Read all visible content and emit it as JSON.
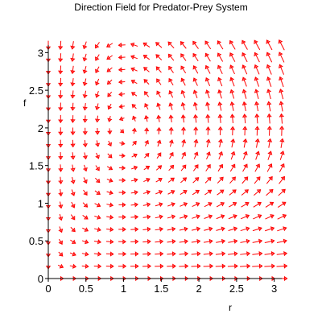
{
  "chart_data": {
    "type": "direction-field",
    "title": "Direction Field for Predator-Prey System",
    "xlabel": "r",
    "ylabel": "f",
    "xlim": [
      0,
      3.1
    ],
    "ylim": [
      0,
      3.1
    ],
    "x_ticks": [
      {
        "value": 0,
        "label": "0"
      },
      {
        "value": 0.5,
        "label": "0.5"
      },
      {
        "value": 1,
        "label": "1"
      },
      {
        "value": 1.5,
        "label": "1.5"
      },
      {
        "value": 2,
        "label": "2"
      },
      {
        "value": 2.5,
        "label": "2.5"
      },
      {
        "value": 3,
        "label": "3"
      }
    ],
    "y_ticks": [
      {
        "value": 0,
        "label": "0"
      },
      {
        "value": 0.5,
        "label": "0.5"
      },
      {
        "value": 1,
        "label": "1"
      },
      {
        "value": 1.5,
        "label": "1.5"
      },
      {
        "value": 2,
        "label": "2"
      },
      {
        "value": 2.5,
        "label": "2.5"
      },
      {
        "value": 3,
        "label": "3"
      }
    ],
    "grid": false,
    "arrow_color": "#ff0000",
    "axis_color": "#000000",
    "grid_points": {
      "x_start": 0.0,
      "x_end": 3.1,
      "y_start": 0.0,
      "y_end": 3.1,
      "count": 20
    },
    "equilibrium": {
      "r": 1.0,
      "f": 2.0
    }
  }
}
